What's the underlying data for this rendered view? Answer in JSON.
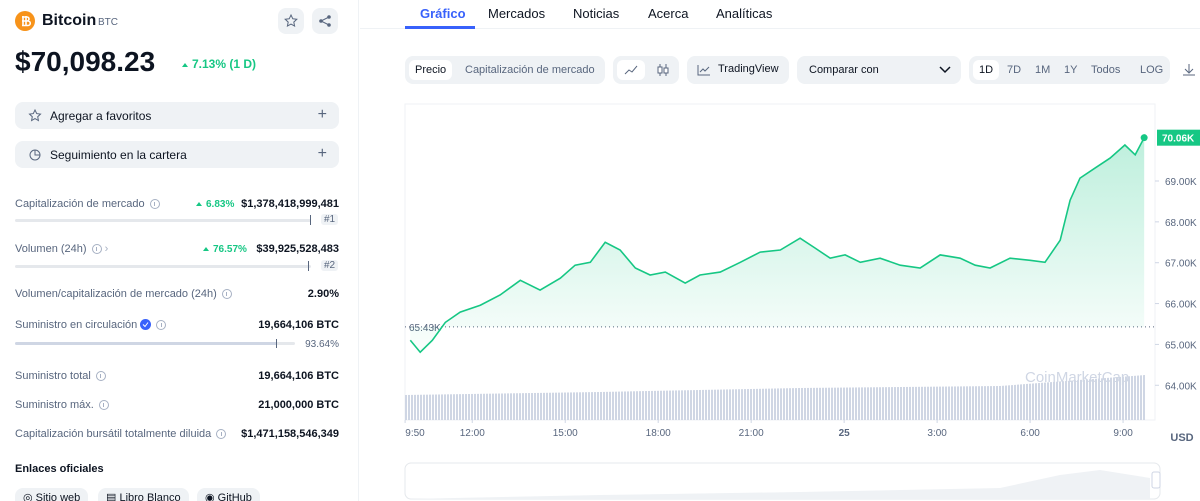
{
  "header": {
    "name": "Bitcoin",
    "symbol": "BTC",
    "price": "$70,098.23",
    "change": "7.13% (1 D)"
  },
  "actions": [
    "Agregar a favoritos",
    "Seguimiento en la cartera"
  ],
  "stats": [
    {
      "label": "Capitalización de mercado",
      "change": "6.83%",
      "value": "$1,378,418,999,481",
      "rank": "#1"
    },
    {
      "label": "Volumen (24h)",
      "change": "76.57%",
      "value": "$39,925,528,483",
      "rank": "#2"
    },
    {
      "label": "Volumen/capitalización de mercado (24h)",
      "value": "2.90%"
    },
    {
      "label": "Suministro en circulación",
      "value": "19,664,106 BTC",
      "percent": "93.64%"
    },
    {
      "label": "Suministro total",
      "value": "19,664,106 BTC"
    },
    {
      "label": "Suministro máx.",
      "value": "21,000,000 BTC"
    },
    {
      "label": "Capitalización bursátil totalmente diluida",
      "value": "$1,471,158,546,349"
    }
  ],
  "links": {
    "title": "Enlaces oficiales",
    "items": [
      "Sitio web",
      "Libro Blanco",
      "GitHub"
    ]
  },
  "tabs": [
    "Gráfico",
    "Mercados",
    "Noticias",
    "Acerca",
    "Analíticas"
  ],
  "toolbar": {
    "modes": [
      "Precio",
      "Capitalización de mercado"
    ],
    "tradingview": "TradingView",
    "compare": "Comparar con",
    "ranges": [
      "1D",
      "7D",
      "1M",
      "1Y",
      "Todos",
      "LOG"
    ]
  },
  "chart_data": {
    "type": "line",
    "watermark": "CoinMarketCap",
    "currency": "USD",
    "x": [
      10.0,
      10.32,
      10.71,
      11.13,
      11.61,
      12.26,
      12.9,
      13.55,
      14.19,
      14.84,
      15.32,
      15.81,
      16.29,
      16.77,
      17.26,
      17.74,
      18.23,
      18.87,
      19.35,
      20.0,
      20.65,
      21.29,
      21.94,
      22.58,
      23.06,
      23.55,
      24.03,
      24.52,
      25.16,
      25.81,
      26.45,
      27.1,
      27.74,
      28.23,
      28.71,
      29.35,
      30.0,
      30.48,
      30.97,
      31.29,
      31.61,
      32.1,
      32.58,
      33.06,
      33.39,
      33.68
    ],
    "series": [
      {
        "name": "Precio",
        "color": "#16c784",
        "values": [
          65100,
          64810,
          65100,
          65540,
          65790,
          65960,
          66210,
          66570,
          66330,
          66620,
          66940,
          67010,
          67500,
          67310,
          66870,
          66700,
          66770,
          66500,
          66700,
          66770,
          67010,
          67260,
          67310,
          67600,
          67360,
          67110,
          67190,
          67010,
          67110,
          66940,
          66870,
          67190,
          67110,
          66940,
          66870,
          67110,
          67060,
          67010,
          67550,
          68530,
          69070,
          69320,
          69560,
          69880,
          69640,
          70060
        ]
      }
    ],
    "reference": {
      "value": 65430,
      "label": "65.43K"
    },
    "current": {
      "value": 70060,
      "label": "70.06K"
    },
    "xlim": [
      9.83,
      34.03
    ],
    "ylim": [
      63150,
      70860
    ],
    "xticks": [
      {
        "value": 9.833,
        "label": "9:50"
      },
      {
        "value": 12,
        "label": "12:00"
      },
      {
        "value": 15,
        "label": "15:00"
      },
      {
        "value": 18,
        "label": "18:00"
      },
      {
        "value": 21,
        "label": "21:00"
      },
      {
        "value": 24,
        "label": "25"
      },
      {
        "value": 27,
        "label": "3:00"
      },
      {
        "value": 30,
        "label": "6:00"
      },
      {
        "value": 33,
        "label": "9:00"
      }
    ],
    "yticks": [
      {
        "value": 64000,
        "label": "64.00K"
      },
      {
        "value": 65000,
        "label": "65.00K"
      },
      {
        "value": 66000,
        "label": "66.00K"
      },
      {
        "value": 67000,
        "label": "67.00K"
      },
      {
        "value": 68000,
        "label": "68.00K"
      },
      {
        "value": 69000,
        "label": "69.00K"
      }
    ],
    "grid": false
  }
}
